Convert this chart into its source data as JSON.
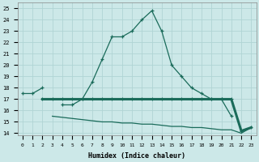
{
  "xlabel": "Humidex (Indice chaleur)",
  "x": [
    0,
    1,
    2,
    3,
    4,
    5,
    6,
    7,
    8,
    9,
    10,
    11,
    12,
    13,
    14,
    15,
    16,
    17,
    18,
    19,
    20,
    21,
    22,
    23
  ],
  "line1": [
    17.5,
    17.5,
    18.0,
    null,
    16.5,
    16.5,
    17.0,
    18.5,
    20.5,
    22.5,
    22.5,
    23.0,
    24.0,
    24.8,
    23.0,
    20.0,
    19.0,
    18.0,
    17.5,
    17.0,
    17.0,
    15.5,
    null,
    null
  ],
  "line2": [
    null,
    null,
    17.0,
    17.0,
    17.0,
    17.0,
    17.0,
    17.0,
    17.0,
    17.0,
    17.0,
    17.0,
    17.0,
    17.0,
    17.0,
    17.0,
    17.0,
    17.0,
    17.0,
    17.0,
    17.0,
    17.0,
    14.2,
    14.5
  ],
  "line3": [
    null,
    null,
    null,
    15.5,
    15.4,
    15.3,
    15.2,
    15.1,
    15.0,
    15.0,
    14.9,
    14.9,
    14.8,
    14.8,
    14.7,
    14.6,
    14.6,
    14.5,
    14.5,
    14.4,
    14.3,
    14.3,
    14.0,
    14.5
  ],
  "color": "#1a6b5a",
  "background": "#cce8e8",
  "grid_color": "#b0d4d4",
  "xlim": [
    -0.5,
    23.5
  ],
  "ylim": [
    13.8,
    25.5
  ],
  "yticks": [
    14,
    15,
    16,
    17,
    18,
    19,
    20,
    21,
    22,
    23,
    24,
    25
  ],
  "xticks": [
    0,
    1,
    2,
    3,
    4,
    5,
    6,
    7,
    8,
    9,
    10,
    11,
    12,
    13,
    14,
    15,
    16,
    17,
    18,
    19,
    20,
    21,
    22,
    23
  ]
}
